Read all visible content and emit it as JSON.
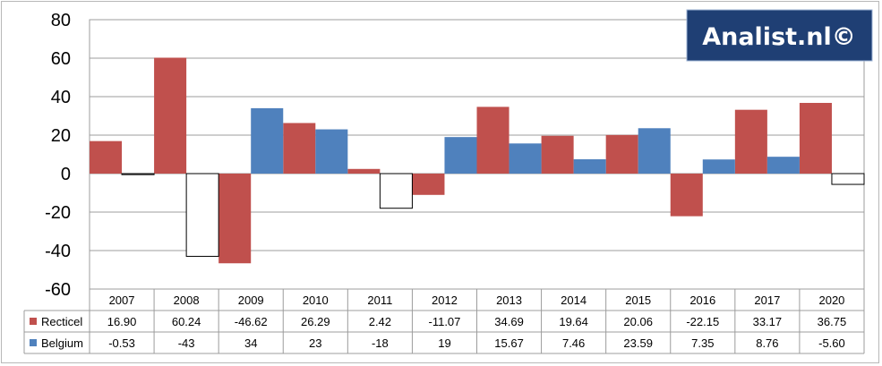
{
  "chart_data": {
    "type": "bar",
    "categories": [
      "2007",
      "2008",
      "2009",
      "2010",
      "2011",
      "2012",
      "2013",
      "2014",
      "2015",
      "2016",
      "2017",
      "2020"
    ],
    "series": [
      {
        "name": "Recticel",
        "color": "#c0504d",
        "values": [
          16.9,
          60.24,
          -46.62,
          26.29,
          2.42,
          -11.07,
          34.69,
          19.64,
          20.06,
          -22.15,
          33.17,
          36.75
        ],
        "labels": [
          "16.90",
          "60.24",
          "-46.62",
          "26.29",
          "2.42",
          "-11.07",
          "34.69",
          "19.64",
          "20.06",
          "-22.15",
          "33.17",
          "36.75"
        ]
      },
      {
        "name": "Belgium",
        "color": "#4f81bd",
        "negative_fill": "#ffffff",
        "values": [
          -0.53,
          -43,
          34,
          23,
          -18,
          19,
          15.67,
          7.46,
          23.59,
          7.35,
          8.76,
          -5.6
        ],
        "labels": [
          "-0.53",
          "-43",
          "34",
          "23",
          "-18",
          "19",
          "15.67",
          "7.46",
          "23.59",
          "7.35",
          "8.76",
          "-5.60"
        ]
      }
    ],
    "ylim": [
      -60,
      80
    ],
    "yticks": [
      "80",
      "60",
      "40",
      "20",
      "0",
      "-20",
      "-40",
      "-60"
    ],
    "ytick_values": [
      80,
      60,
      40,
      20,
      0,
      -20,
      -40,
      -60
    ],
    "grid": true,
    "legend": "data-table"
  },
  "logo": {
    "text": "Analist.nl©",
    "background": "#1f3f74"
  }
}
